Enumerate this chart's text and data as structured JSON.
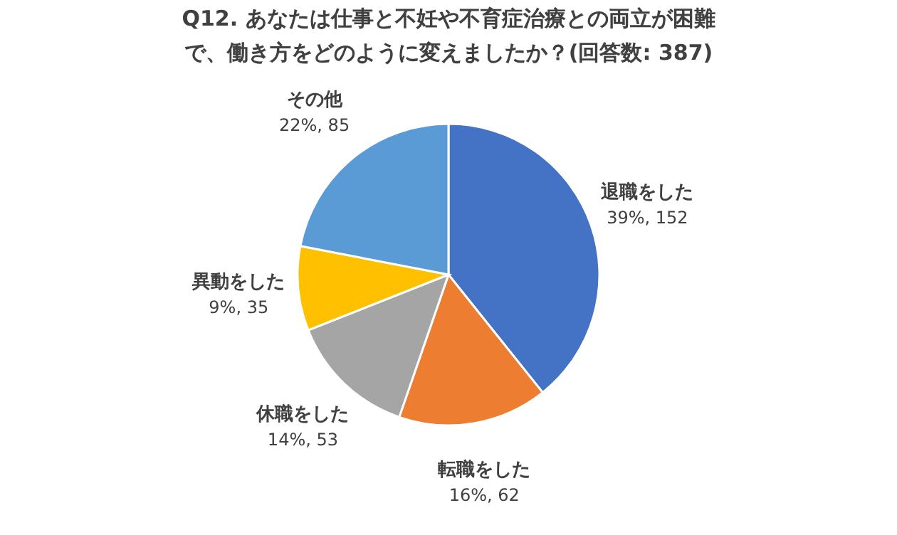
{
  "chart_data": {
    "type": "pie",
    "title": [
      "Q12. あなたは仕事と不妊や不育症治療との両立が困難",
      "で、働き方をどのように変えましたか？(回答数: 387)"
    ],
    "categories": [
      "退職をした",
      "転職をした",
      "休職をした",
      "異動をした",
      "その他"
    ],
    "values": [
      152,
      62,
      53,
      35,
      85
    ],
    "colors": [
      "#4472c4",
      "#ed7d31",
      "#a5a5a5",
      "#ffc000",
      "#5b9bd5"
    ],
    "value_labels": [
      "39%, 152",
      "16%, 62",
      "14%, 53",
      "9%, 35",
      "22%, 85"
    ]
  }
}
